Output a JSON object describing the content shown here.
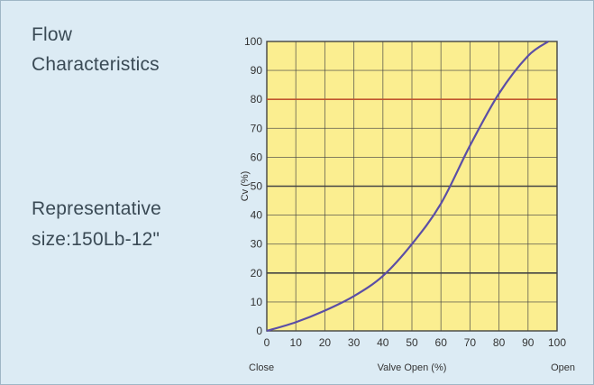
{
  "panel": {
    "title_line1": "Flow",
    "title_line2": "Characteristics",
    "size_line1": "Representative",
    "size_line2": "size:150Lb-12\""
  },
  "colors": {
    "background": "#dcebf4",
    "plot_area": "#fbee90",
    "grid": "#444444",
    "highlight_line": "#c0552e",
    "curve": "#5b4ea6",
    "text": "#3a4a55"
  },
  "chart_data": {
    "type": "line",
    "title": "",
    "xlabel": "Valve Open (%)",
    "ylabel": "Cv (%)",
    "xlim": [
      0,
      100
    ],
    "ylim": [
      0,
      100
    ],
    "x_ticks": [
      0,
      10,
      20,
      30,
      40,
      50,
      60,
      70,
      80,
      90,
      100
    ],
    "y_ticks": [
      0,
      10,
      20,
      30,
      40,
      50,
      60,
      70,
      80,
      90,
      100
    ],
    "x_end_labels": {
      "left": "Close",
      "right": "Open"
    },
    "grid": true,
    "reference_lines": [
      {
        "y": 20,
        "color": "#444444"
      },
      {
        "y": 50,
        "color": "#444444"
      },
      {
        "y": 80,
        "color": "#c0552e"
      }
    ],
    "series": [
      {
        "x": [
          0,
          10,
          20,
          30,
          40,
          50,
          60,
          70,
          80,
          90,
          97
        ],
        "y": [
          0,
          3,
          7,
          12,
          19,
          30,
          44,
          64,
          82,
          95,
          100
        ]
      }
    ]
  }
}
